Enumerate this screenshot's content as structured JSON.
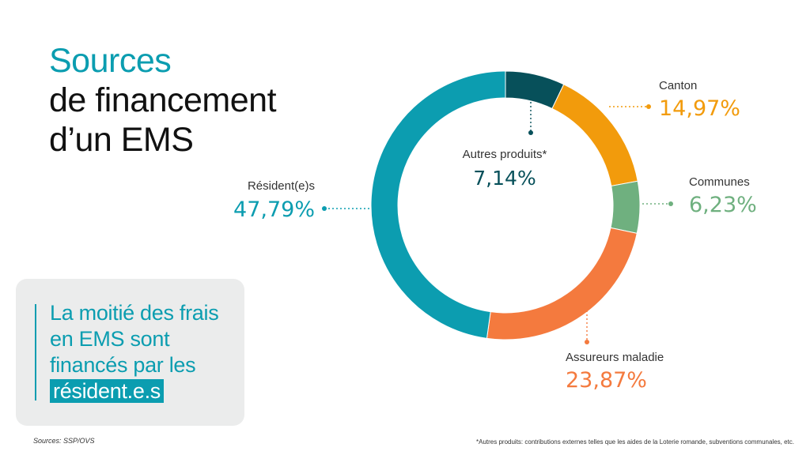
{
  "title": {
    "accent": "Sources",
    "line2": "de financement",
    "line3": "d’un EMS"
  },
  "callout": {
    "text_before": "La moitié des frais en EMS sont financés par les",
    "highlight": "résident.e.s"
  },
  "footer": {
    "sources": "Sources: SSP/OVS",
    "note": "*Autres produits: contributions externes telles que les aides de la Loterie romande, subventions communales, etc."
  },
  "chart_data": {
    "type": "pie",
    "donut": true,
    "categories": [
      "Autres produits*",
      "Canton",
      "Communes",
      "Assureurs maladie",
      "Résident(e)s"
    ],
    "values": [
      7.14,
      14.97,
      6.23,
      23.87,
      47.79
    ],
    "value_labels": [
      "7,14%",
      "14,97%",
      "6,23%",
      "23,87%",
      "47,79%"
    ],
    "colors": [
      "#07505a",
      "#f29b0c",
      "#6fb07f",
      "#f47a3e",
      "#0c9db0"
    ]
  }
}
